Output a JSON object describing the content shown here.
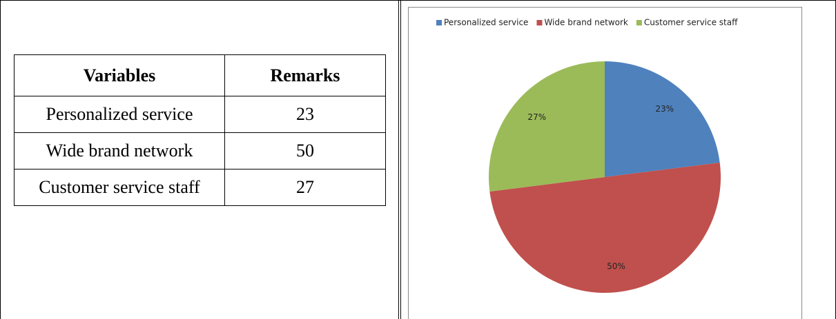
{
  "table": {
    "header": [
      "Variables",
      "Remarks"
    ],
    "rows": [
      [
        "Personalized service",
        23
      ],
      [
        "Wide brand network",
        50
      ],
      [
        "Customer service staff",
        27
      ]
    ]
  },
  "chart_data": {
    "type": "pie",
    "categories": [
      "Personalized service",
      "Wide brand network",
      "Customer service staff"
    ],
    "values": [
      23,
      50,
      27
    ],
    "value_labels": [
      "23%",
      "50%",
      "27%"
    ],
    "colors": [
      "#4f81bd",
      "#c0504d",
      "#9bbb59"
    ],
    "legend": "top"
  }
}
